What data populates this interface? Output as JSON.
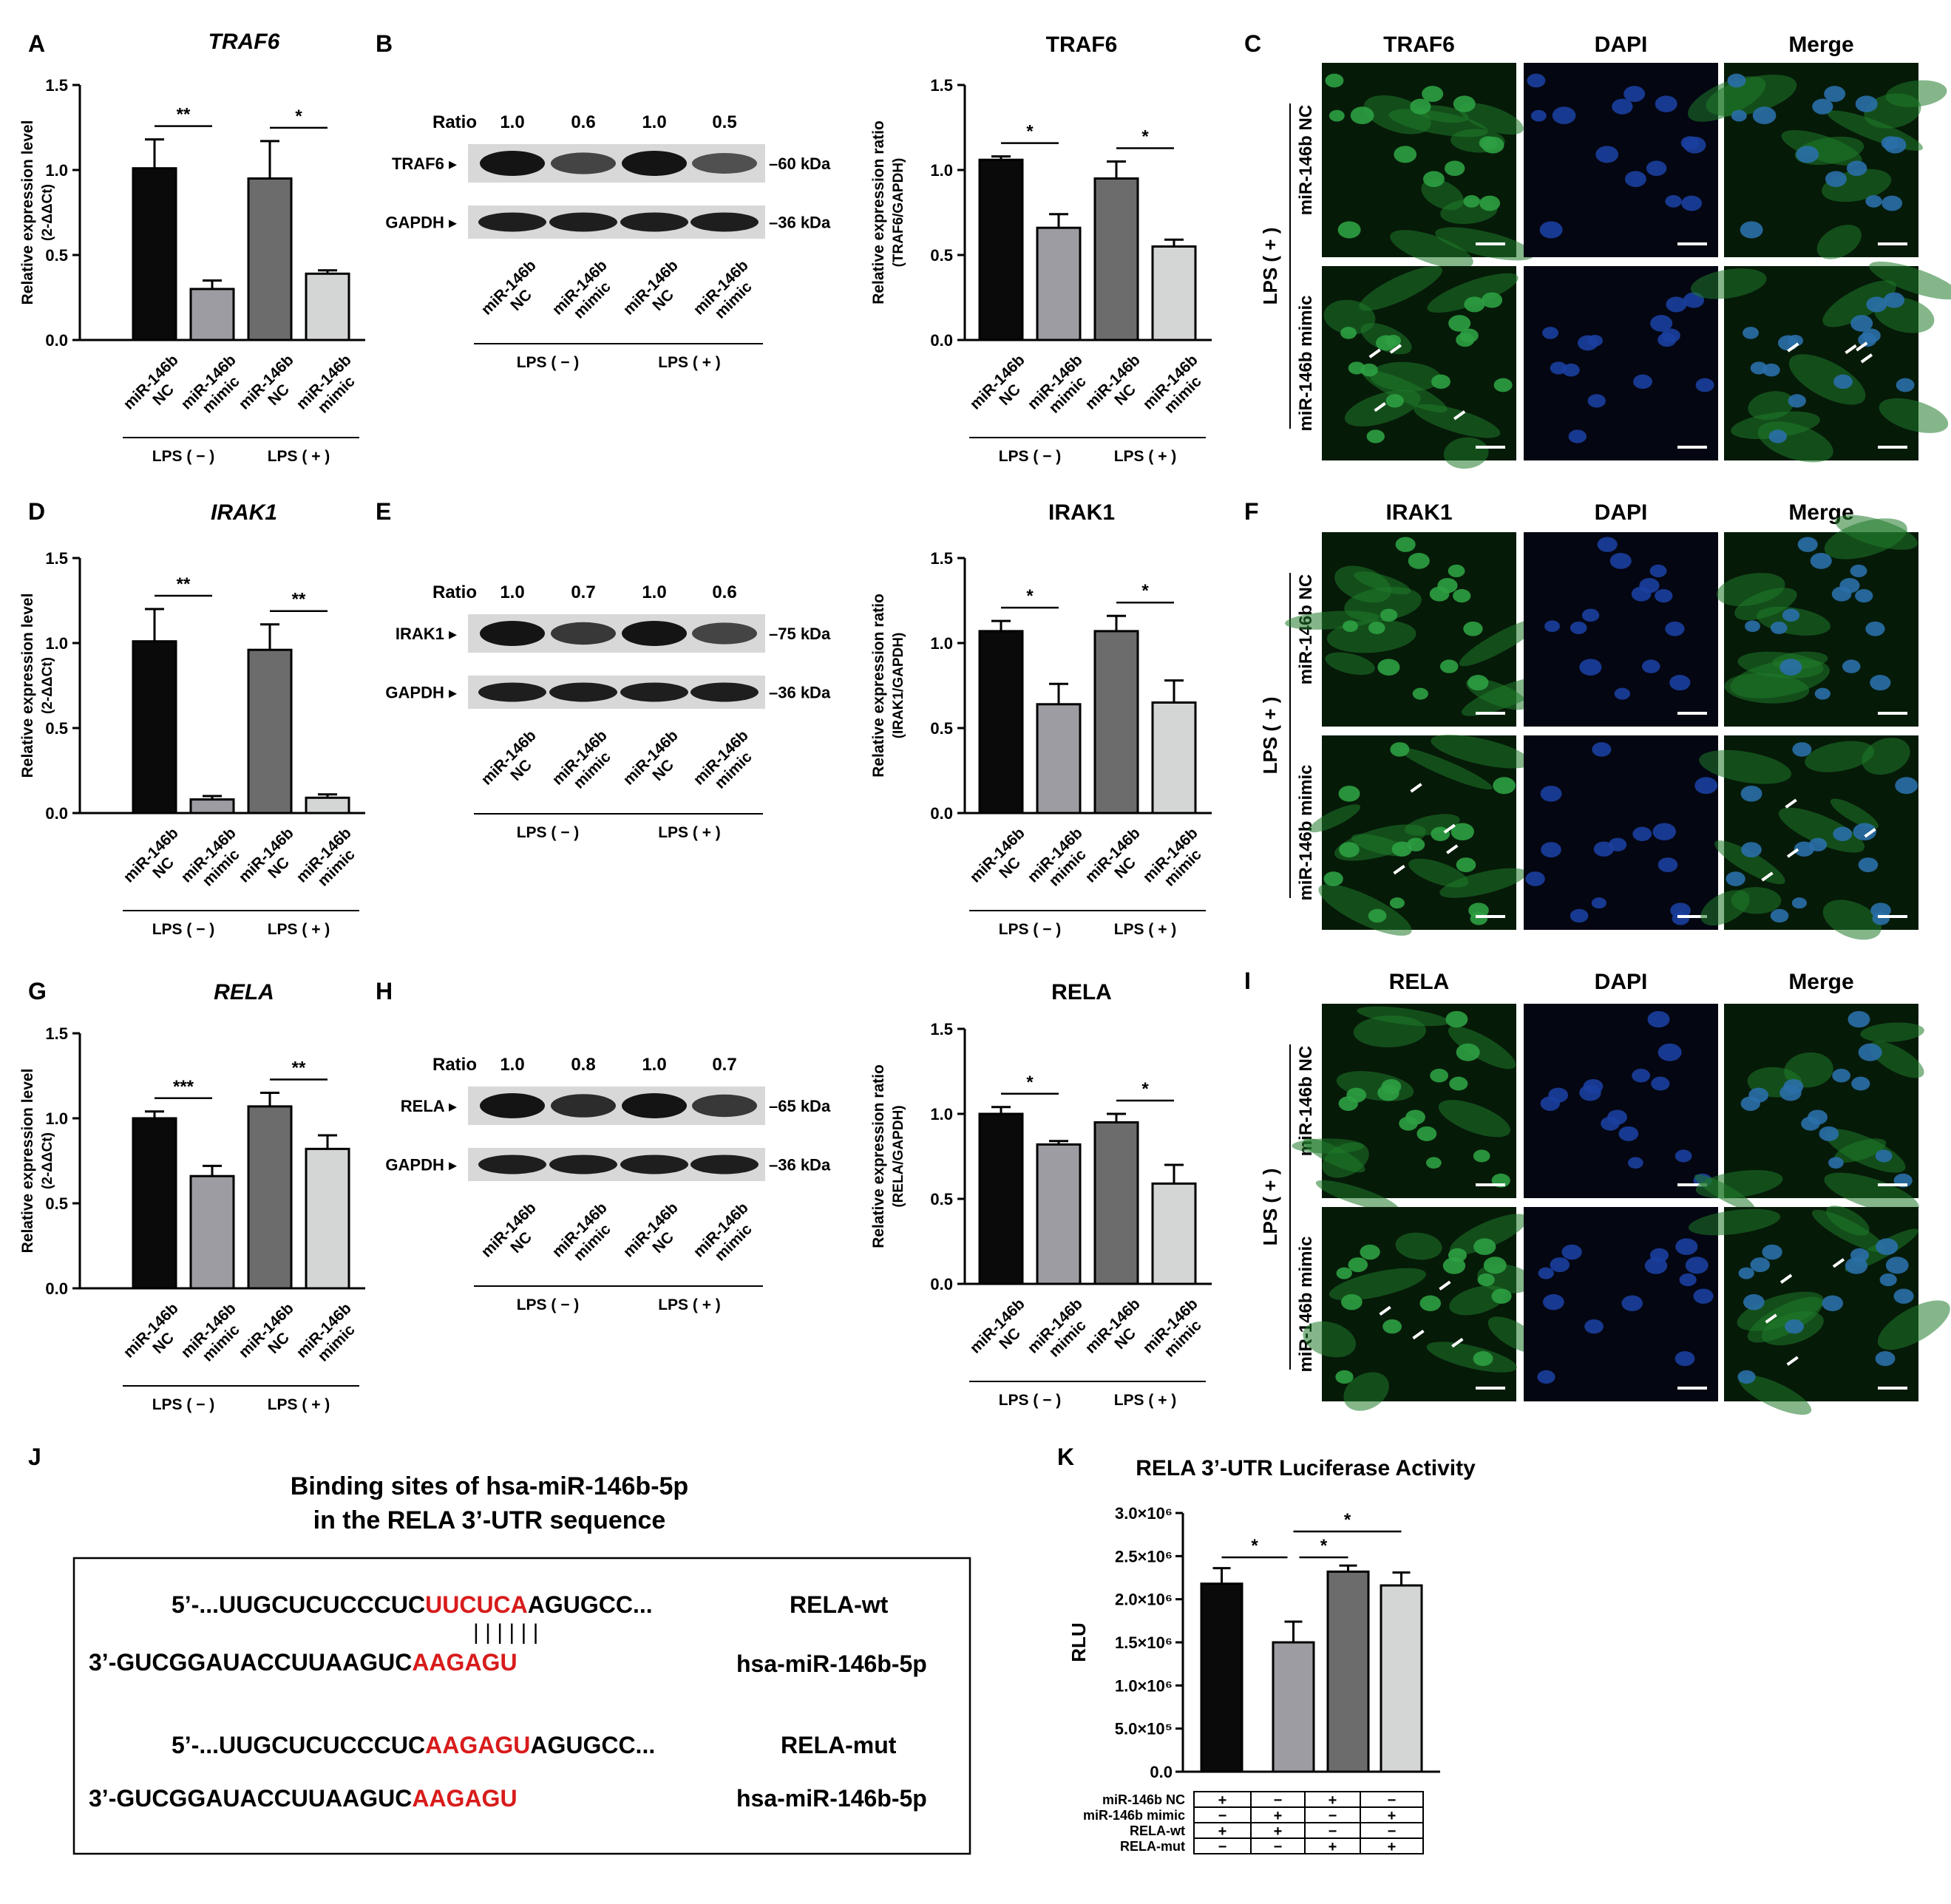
{
  "colors": {
    "bar_nc_neg": "#0a0a0a",
    "bar_mimic_neg": "#9c9ca2",
    "bar_nc_pos": "#6c6c6c",
    "bar_mimic_pos": "#d4d6d6",
    "highlight": "#d81b1b",
    "if_green": "#1f7a2a",
    "if_blue": "#1b3f9e"
  },
  "panel_letters": [
    "A",
    "B",
    "C",
    "D",
    "E",
    "F",
    "G",
    "H",
    "I",
    "J",
    "K"
  ],
  "ylabels": {
    "qpcr": "Relative expression level",
    "qpcr_sub": "(2-ΔΔCt)",
    "traf6": "Relative expression ratio",
    "traf6_sub": "(TRAF6/GAPDH)",
    "irak1": "Relative expression ratio",
    "irak1_sub": "(IRAK1/GAPDH)",
    "rela": "Relative expression ratio",
    "rela_sub": "(RELA/GAPDH)",
    "rlu": "RLU"
  },
  "group_labels": [
    "LPS ( − )",
    "LPS ( + )"
  ],
  "cat_labels": [
    [
      "miR-146b",
      "NC"
    ],
    [
      "miR-146b",
      "mimic"
    ],
    [
      "miR-146b",
      "NC"
    ],
    [
      "miR-146b",
      "mimic"
    ]
  ],
  "chart_data": [
    {
      "id": "A",
      "type": "bar",
      "title": "TRAF6",
      "ylim": [
        0,
        1.5
      ],
      "ticks": [
        "0.0",
        "0.5",
        "1.0",
        "1.5"
      ],
      "values": [
        1.01,
        0.3,
        0.95,
        0.39
      ],
      "errors": [
        0.17,
        0.05,
        0.22,
        0.02
      ],
      "sig": [
        {
          "from": 0,
          "to": 1,
          "label": "**"
        },
        {
          "from": 2,
          "to": 3,
          "label": "*"
        }
      ]
    },
    {
      "id": "B",
      "type": "bar",
      "title": "TRAF6",
      "ylim": [
        0,
        1.5
      ],
      "ticks": [
        "0.0",
        "0.5",
        "1.0",
        "1.5"
      ],
      "values": [
        1.06,
        0.66,
        0.95,
        0.55
      ],
      "errors": [
        0.02,
        0.08,
        0.1,
        0.04
      ],
      "sig": [
        {
          "from": 0,
          "to": 1,
          "label": "*"
        },
        {
          "from": 2,
          "to": 3,
          "label": "*"
        }
      ]
    },
    {
      "id": "D",
      "type": "bar",
      "title": "IRAK1",
      "ylim": [
        0,
        1.5
      ],
      "ticks": [
        "0.0",
        "0.5",
        "1.0",
        "1.5"
      ],
      "values": [
        1.01,
        0.08,
        0.96,
        0.09
      ],
      "errors": [
        0.19,
        0.02,
        0.15,
        0.02
      ],
      "sig": [
        {
          "from": 0,
          "to": 1,
          "label": "**"
        },
        {
          "from": 2,
          "to": 3,
          "label": "**"
        }
      ]
    },
    {
      "id": "E",
      "type": "bar",
      "title": "IRAK1",
      "ylim": [
        0,
        1.5
      ],
      "ticks": [
        "0.0",
        "0.5",
        "1.0",
        "1.5"
      ],
      "values": [
        1.07,
        0.64,
        1.07,
        0.65
      ],
      "errors": [
        0.06,
        0.12,
        0.09,
        0.13
      ],
      "sig": [
        {
          "from": 0,
          "to": 1,
          "label": "*"
        },
        {
          "from": 2,
          "to": 3,
          "label": "*"
        }
      ]
    },
    {
      "id": "G",
      "type": "bar",
      "title": "RELA",
      "ylim": [
        0,
        1.5
      ],
      "ticks": [
        "0.0",
        "0.5",
        "1.0",
        "1.5"
      ],
      "values": [
        1.0,
        0.66,
        1.07,
        0.82
      ],
      "errors": [
        0.04,
        0.06,
        0.08,
        0.08
      ],
      "sig": [
        {
          "from": 0,
          "to": 1,
          "label": "***"
        },
        {
          "from": 2,
          "to": 3,
          "label": "**"
        }
      ]
    },
    {
      "id": "H",
      "type": "bar",
      "title": "RELA",
      "ylim": [
        0,
        1.5
      ],
      "ticks": [
        "0.0",
        "0.5",
        "1.0",
        "1.5"
      ],
      "values": [
        1.0,
        0.82,
        0.95,
        0.59
      ],
      "errors": [
        0.04,
        0.02,
        0.05,
        0.11
      ],
      "sig": [
        {
          "from": 0,
          "to": 1,
          "label": "*"
        },
        {
          "from": 2,
          "to": 3,
          "label": "*"
        }
      ]
    },
    {
      "id": "K",
      "type": "bar",
      "title": "RELA 3’-UTR Luciferase Activity",
      "ylabel": "RLU",
      "ylim": [
        0,
        3000000
      ],
      "ticks": [
        "0.0",
        "5.0×10⁵",
        "1.0×10⁶",
        "1.5×10⁶",
        "2.0×10⁶",
        "2.5×10⁶",
        "3.0×10⁶"
      ],
      "values": [
        2180000,
        1500000,
        2320000,
        2160000
      ],
      "errors": [
        180000,
        240000,
        70000,
        150000
      ],
      "sig": [
        {
          "from": 0,
          "to": 1,
          "label": "*"
        },
        {
          "from": 1,
          "to": 2,
          "label": "*"
        },
        {
          "from": 1,
          "to": 3,
          "label": "*"
        }
      ],
      "table": [
        {
          "label": "miR-146b NC",
          "cells": [
            "+",
            "−",
            "+",
            "−"
          ]
        },
        {
          "label": "miR-146b mimic",
          "cells": [
            "−",
            "+",
            "−",
            "+"
          ]
        },
        {
          "label": "RELA-wt",
          "cells": [
            "+",
            "+",
            "−",
            "−"
          ]
        },
        {
          "label": "RELA-mut",
          "cells": [
            "−",
            "−",
            "+",
            "+"
          ]
        }
      ]
    }
  ],
  "blots": [
    {
      "id": "B",
      "ratio_label": "Ratio",
      "ratios": [
        "1.0",
        "0.6",
        "1.0",
        "0.5"
      ],
      "target": "TRAF6",
      "target_kda": "60 kDa",
      "control": "GAPDH",
      "control_kda": "36 kDa"
    },
    {
      "id": "E",
      "ratio_label": "Ratio",
      "ratios": [
        "1.0",
        "0.7",
        "1.0",
        "0.6"
      ],
      "target": "IRAK1",
      "target_kda": "75 kDa",
      "control": "GAPDH",
      "control_kda": "36 kDa"
    },
    {
      "id": "H",
      "ratio_label": "Ratio",
      "ratios": [
        "1.0",
        "0.8",
        "1.0",
        "0.7"
      ],
      "target": "RELA",
      "target_kda": "65 kDa",
      "control": "GAPDH",
      "control_kda": "36 kDa"
    }
  ],
  "if_panels": [
    {
      "id": "C",
      "columns": [
        "TRAF6",
        "DAPI",
        "Merge"
      ],
      "rows": [
        "miR-146b NC",
        "miR-146b mimic"
      ],
      "side": "LPS ( + )"
    },
    {
      "id": "F",
      "columns": [
        "IRAK1",
        "DAPI",
        "Merge"
      ],
      "rows": [
        "miR-146b NC",
        "miR-146b mimic"
      ],
      "side": "LPS ( + )"
    },
    {
      "id": "I",
      "columns": [
        "RELA",
        "DAPI",
        "Merge"
      ],
      "rows": [
        "miR-146b NC",
        "miR-146b mimic"
      ],
      "side": "LPS ( + )"
    }
  ],
  "panel_j": {
    "title_line1": "Binding sites of hsa-miR-146b-5p",
    "title_line2": "in the RELA 3’-UTR sequence",
    "seq1": {
      "pre": "5’-...UUGCUCUCCCUC",
      "hl": "UUCUCA",
      "post": "AGUGCC...",
      "label": "RELA-wt"
    },
    "pairs": "| | | | | |",
    "seq2": {
      "pre": "3’-GUCGGAUACCUUAAGUC",
      "hl": "AAGAGU",
      "post": "",
      "label": "hsa-miR-146b-5p"
    },
    "seq3": {
      "pre": "5’-...UUGCUCUCCCUC",
      "hl": "AAGAGU",
      "post": "AGUGCC...",
      "label": "RELA-mut"
    },
    "seq4": {
      "pre": "3’-GUCGGAUACCUUAAGUC",
      "hl": "AAGAGU",
      "post": "",
      "label": "hsa-miR-146b-5p"
    }
  }
}
